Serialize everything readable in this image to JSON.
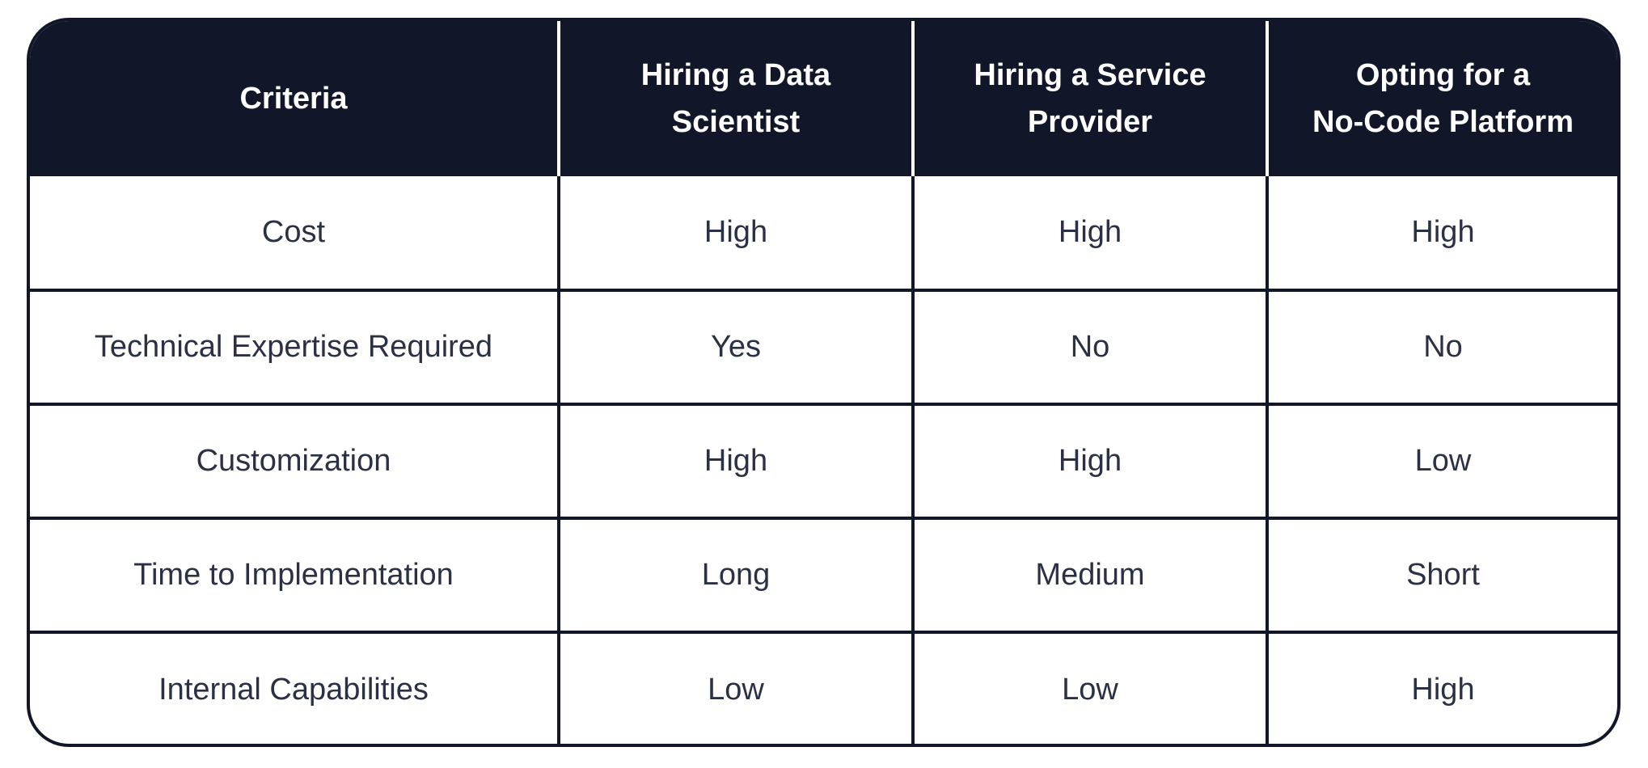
{
  "table": {
    "headers": [
      [
        "Criteria"
      ],
      [
        "Hiring a Data",
        "Scientist"
      ],
      [
        "Hiring a Service",
        "Provider"
      ],
      [
        "Opting for a",
        "No-Code Platform"
      ]
    ],
    "rows": [
      [
        "Cost",
        "High",
        "High",
        "High"
      ],
      [
        "Technical Expertise Required",
        "Yes",
        "No",
        "No"
      ],
      [
        "Customization",
        "High",
        "High",
        "Low"
      ],
      [
        "Time to Implementation",
        "Long",
        "Medium",
        "Short"
      ],
      [
        "Internal Capabilities",
        "Low",
        "Low",
        "High"
      ]
    ]
  }
}
